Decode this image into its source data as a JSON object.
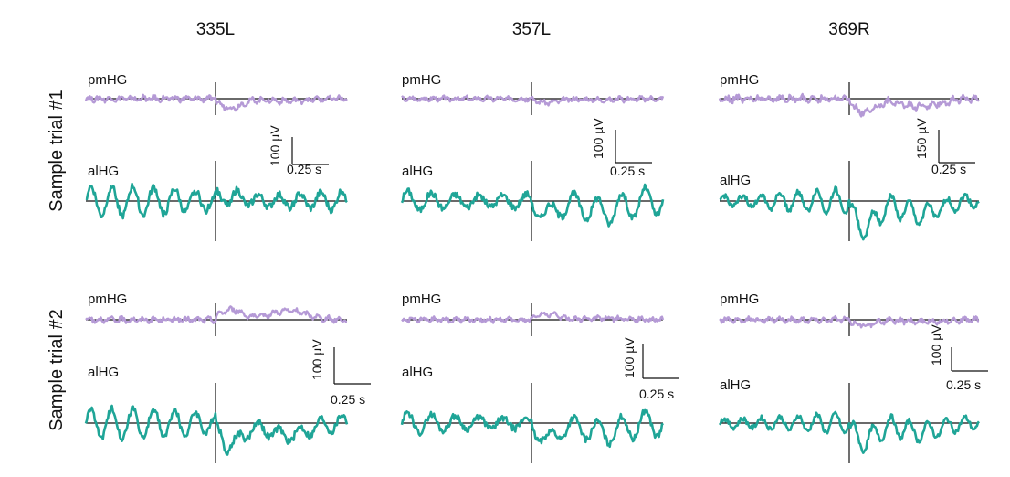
{
  "columns": [
    "335L",
    "357L",
    "369R"
  ],
  "rows": [
    "Sample trial #1",
    "Sample trial #2"
  ],
  "trace_labels": {
    "top": "pmHG",
    "bottom": "alHG"
  },
  "colors": {
    "pmHG": "#b59ad6",
    "alHG": "#1fa597",
    "axis": "#111111"
  },
  "chart_data": {
    "type": "line",
    "title": "",
    "xlabel": "",
    "ylabel": "",
    "description_of_axes": "time-locked traces; vertical line marks event onset",
    "scale_bars": [
      {
        "column": "335L",
        "row": "Sample trial #1",
        "y_label": "100 µV",
        "x_label": "0.25 s"
      },
      {
        "column": "357L",
        "row": "Sample trial #1",
        "y_label": "100 µV",
        "x_label": "0.25 s"
      },
      {
        "column": "369R",
        "row": "Sample trial #1",
        "y_label": "150 µV",
        "x_label": "0.25 s"
      },
      {
        "column": "335L",
        "row": "Sample trial #2",
        "y_label": "100 µV",
        "x_label": "0.25 s"
      },
      {
        "column": "357L",
        "row": "Sample trial #2",
        "y_label": "100 µV",
        "x_label": "0.25 s"
      },
      {
        "column": "369R",
        "row": "Sample trial #2",
        "y_label": "100 µV",
        "x_label": "0.25 s"
      }
    ],
    "series": [
      {
        "name": "pmHG",
        "column": "335L",
        "row": "Sample trial #1",
        "amp": 0.33,
        "shape": "noise",
        "post": [
          -0.8,
          0.2
        ]
      },
      {
        "name": "alHG",
        "column": "335L",
        "row": "Sample trial #1",
        "amp": 1.0,
        "shape": "osc",
        "post": [
          0.2,
          0.0
        ]
      },
      {
        "name": "pmHG",
        "column": "357L",
        "row": "Sample trial #1",
        "amp": 0.28,
        "shape": "noise",
        "post": [
          -0.4,
          0.1
        ]
      },
      {
        "name": "alHG",
        "column": "357L",
        "row": "Sample trial #1",
        "amp": 0.95,
        "shape": "osc",
        "post": [
          -0.6,
          0.5
        ]
      },
      {
        "name": "pmHG",
        "column": "369R",
        "row": "Sample trial #1",
        "amp": 0.4,
        "shape": "noise",
        "post": [
          -1.0,
          0.6
        ]
      },
      {
        "name": "alHG",
        "column": "369R",
        "row": "Sample trial #1",
        "amp": 0.8,
        "shape": "osc",
        "post": [
          -1.6,
          0.8
        ]
      },
      {
        "name": "pmHG",
        "column": "335L",
        "row": "Sample trial #2",
        "amp": 0.3,
        "shape": "noise",
        "post": [
          1.0,
          -0.9
        ]
      },
      {
        "name": "alHG",
        "column": "335L",
        "row": "Sample trial #2",
        "amp": 1.0,
        "shape": "osc",
        "post": [
          -1.0,
          0.6
        ]
      },
      {
        "name": "pmHG",
        "column": "357L",
        "row": "Sample trial #2",
        "amp": 0.28,
        "shape": "noise",
        "post": [
          0.6,
          -0.2
        ]
      },
      {
        "name": "alHG",
        "column": "357L",
        "row": "Sample trial #2",
        "amp": 0.9,
        "shape": "osc",
        "post": [
          -0.8,
          0.5
        ]
      },
      {
        "name": "pmHG",
        "column": "369R",
        "row": "Sample trial #2",
        "amp": 0.3,
        "shape": "noise",
        "post": [
          -0.5,
          0.2
        ]
      },
      {
        "name": "alHG",
        "column": "369R",
        "row": "Sample trial #2",
        "amp": 0.7,
        "shape": "osc",
        "post": [
          -1.2,
          0.6
        ]
      }
    ]
  }
}
